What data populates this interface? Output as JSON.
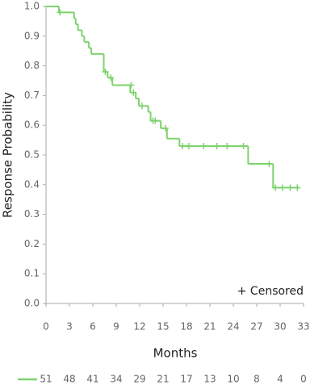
{
  "chart_data": {
    "type": "step",
    "x_label": "Months",
    "y_label": "Response Probability",
    "annotation": "+ Censored",
    "color": "#7dd36b",
    "x": [
      0,
      1.65,
      3.6,
      3.8,
      4.1,
      4.6,
      4.9,
      5.5,
      5.8,
      7.4,
      7.9,
      8.5,
      10.8,
      11.5,
      11.9,
      13.1,
      13.4,
      14.7,
      15.5,
      17.1,
      25.9,
      29.1
    ],
    "values": [
      1.0,
      0.98,
      0.96,
      0.94,
      0.92,
      0.9,
      0.88,
      0.86,
      0.84,
      0.78,
      0.76,
      0.735,
      0.71,
      0.69,
      0.665,
      0.645,
      0.615,
      0.59,
      0.555,
      0.53,
      0.47,
      0.39
    ],
    "x_end": 32.4,
    "censored": {
      "x": [
        1.8,
        7.6,
        8.3,
        10.9,
        11.2,
        12.3,
        13.7,
        14.0,
        15.3,
        17.5,
        18.3,
        20.2,
        21.9,
        23.2,
        25.3,
        28.6,
        29.4,
        30.3,
        31.3,
        32.2
      ],
      "values": [
        0.98,
        0.78,
        0.76,
        0.735,
        0.71,
        0.665,
        0.615,
        0.615,
        0.59,
        0.53,
        0.53,
        0.53,
        0.53,
        0.53,
        0.53,
        0.47,
        0.39,
        0.39,
        0.39,
        0.39
      ]
    },
    "xlim": [
      0,
      33
    ],
    "xticks": [
      0,
      3,
      6,
      9,
      12,
      15,
      18,
      21,
      24,
      27,
      30,
      33
    ],
    "ylim": [
      0,
      1
    ],
    "yticks": [
      {
        "value": 0,
        "label": "0.0"
      },
      {
        "value": 0.1,
        "label": "0.1"
      },
      {
        "value": 0.2,
        "label": "0.2"
      },
      {
        "value": 0.3,
        "label": "0.3"
      },
      {
        "value": 0.4,
        "label": "0.4"
      },
      {
        "value": 0.5,
        "label": "0.5"
      },
      {
        "value": 0.6,
        "label": "0.6"
      },
      {
        "value": 0.7,
        "label": "0.7"
      },
      {
        "value": 0.8,
        "label": "0.8"
      },
      {
        "value": 0.9,
        "label": "0.9"
      },
      {
        "value": 1,
        "label": "1.0"
      }
    ],
    "at_risk": [
      51,
      48,
      41,
      34,
      29,
      21,
      17,
      13,
      10,
      8,
      4,
      0
    ]
  }
}
